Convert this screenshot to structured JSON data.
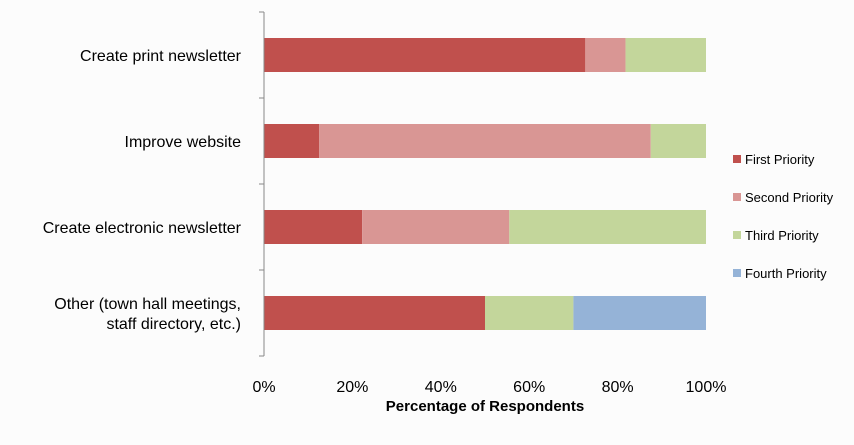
{
  "chart_data": {
    "type": "bar",
    "orientation": "horizontal",
    "stacked": true,
    "normalized_percent": true,
    "categories": [
      [
        "Create print newsletter"
      ],
      [
        "Improve website"
      ],
      [
        "Create electronic newsletter"
      ],
      [
        "Other (town hall meetings,",
        "staff directory, etc.)"
      ]
    ],
    "series": [
      {
        "name": "First Priority",
        "color": "#c0504d",
        "values": [
          72.7,
          12.5,
          22.2,
          50.0
        ]
      },
      {
        "name": "Second Priority",
        "color": "#d99694",
        "values": [
          9.1,
          75.0,
          33.3,
          0.0
        ]
      },
      {
        "name": "Third Priority",
        "color": "#c3d69b",
        "values": [
          18.2,
          12.5,
          44.5,
          20.0
        ]
      },
      {
        "name": "Fourth Priority",
        "color": "#95b3d7",
        "values": [
          0.0,
          0.0,
          0.0,
          30.0
        ]
      }
    ],
    "x_ticks": [
      "0%",
      "20%",
      "40%",
      "60%",
      "80%",
      "100%"
    ],
    "xlim": [
      0,
      100
    ],
    "title": "",
    "xlabel": "Percentage of Respondents",
    "ylabel": "",
    "grid": false,
    "legend_position": "right"
  }
}
